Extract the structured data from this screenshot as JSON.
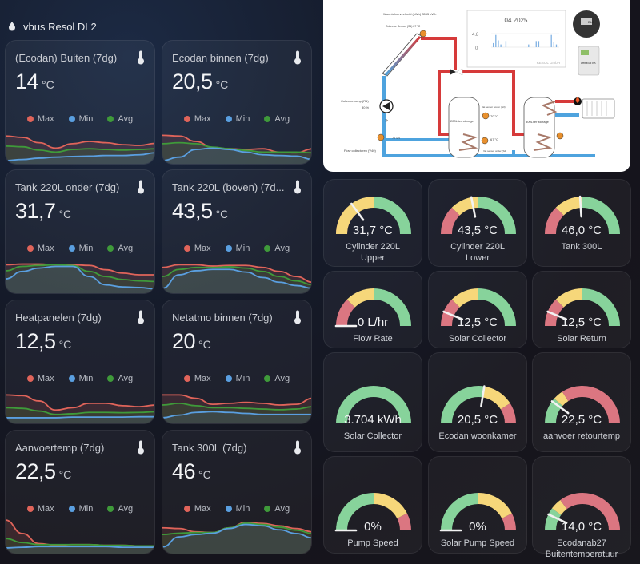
{
  "header": {
    "title": "vbus Resol DL2",
    "icon": "water-drop-icon"
  },
  "colors": {
    "max": "#e0645a",
    "min": "#5a9fe0",
    "avg": "#3f9a3a",
    "gauge_red": "#db7681",
    "gauge_yellow": "#f6d77a",
    "gauge_green": "#87d39b"
  },
  "legend": {
    "max": "Max",
    "min": "Min",
    "avg": "Avg"
  },
  "sensor_cards": [
    {
      "name": "(Ecodan) Buiten (7dg)",
      "value": "14",
      "unit": "°C",
      "icon": "thermometer-icon",
      "series": {
        "max": [
          0.78,
          0.74,
          0.58,
          0.42,
          0.55,
          0.62,
          0.58,
          0.52,
          0.5,
          0.56
        ],
        "avg": [
          0.48,
          0.46,
          0.36,
          0.3,
          0.38,
          0.4,
          0.38,
          0.36,
          0.38,
          0.4
        ],
        "min": [
          0.05,
          0.08,
          0.12,
          0.15,
          0.17,
          0.18,
          0.2,
          0.2,
          0.22,
          0.28
        ]
      }
    },
    {
      "name": "Ecodan binnen (7dg)",
      "value": "20,5",
      "unit": "°C",
      "icon": "thermometer-icon",
      "series": {
        "max": [
          0.8,
          0.78,
          0.62,
          0.44,
          0.4,
          0.38,
          0.4,
          0.3,
          0.28,
          0.4
        ],
        "avg": [
          0.55,
          0.58,
          0.55,
          0.45,
          0.4,
          0.35,
          0.3,
          0.3,
          0.3,
          0.28
        ],
        "min": [
          0.05,
          0.15,
          0.38,
          0.42,
          0.38,
          0.3,
          0.22,
          0.2,
          0.18,
          0.08
        ]
      }
    },
    {
      "name": "Tank 220L onder (7dg)",
      "value": "31,7",
      "unit": "°C",
      "icon": "thermometer-icon",
      "series": {
        "max": [
          0.8,
          0.82,
          0.82,
          0.8,
          0.8,
          0.78,
          0.65,
          0.55,
          0.5,
          0.5
        ],
        "avg": [
          0.62,
          0.75,
          0.78,
          0.8,
          0.78,
          0.6,
          0.45,
          0.36,
          0.32,
          0.3
        ],
        "min": [
          0.38,
          0.6,
          0.7,
          0.75,
          0.75,
          0.45,
          0.2,
          0.14,
          0.12,
          0.08
        ]
      }
    },
    {
      "name": "Tank 220L (boven) (7d...",
      "value": "43,5",
      "unit": "°C",
      "icon": "thermometer-icon",
      "series": {
        "max": [
          0.72,
          0.8,
          0.8,
          0.76,
          0.78,
          0.78,
          0.72,
          0.6,
          0.45,
          0.28
        ],
        "avg": [
          0.45,
          0.66,
          0.72,
          0.72,
          0.74,
          0.7,
          0.6,
          0.45,
          0.32,
          0.2
        ],
        "min": [
          0.1,
          0.5,
          0.62,
          0.66,
          0.66,
          0.58,
          0.42,
          0.28,
          0.18,
          0.1
        ]
      }
    },
    {
      "name": "Heatpanelen (7dg)",
      "value": "12,5",
      "unit": "°C",
      "icon": "thermometer-icon",
      "series": {
        "max": [
          0.8,
          0.78,
          0.62,
          0.35,
          0.42,
          0.55,
          0.55,
          0.48,
          0.45,
          0.5
        ],
        "avg": [
          0.42,
          0.4,
          0.32,
          0.22,
          0.24,
          0.28,
          0.28,
          0.27,
          0.28,
          0.3
        ],
        "min": [
          0.12,
          0.12,
          0.12,
          0.12,
          0.14,
          0.14,
          0.14,
          0.14,
          0.15,
          0.15
        ]
      }
    },
    {
      "name": "Netatmo binnen (7dg)",
      "value": "20",
      "unit": "°C",
      "icon": "thermometer-icon",
      "series": {
        "max": [
          0.8,
          0.8,
          0.7,
          0.52,
          0.55,
          0.58,
          0.55,
          0.5,
          0.52,
          0.7
        ],
        "avg": [
          0.5,
          0.55,
          0.48,
          0.42,
          0.42,
          0.4,
          0.38,
          0.36,
          0.38,
          0.45
        ],
        "min": [
          0.12,
          0.2,
          0.28,
          0.3,
          0.28,
          0.25,
          0.22,
          0.22,
          0.22,
          0.22
        ]
      }
    },
    {
      "name": "Aanvoertemp (7dg)",
      "value": "22,5",
      "unit": "°C",
      "icon": "thermometer-icon",
      "series": {
        "max": [
          0.95,
          0.55,
          0.25,
          0.2,
          0.22,
          0.22,
          0.2,
          0.2,
          0.18,
          0.18
        ],
        "avg": [
          0.4,
          0.28,
          0.22,
          0.22,
          0.22,
          0.22,
          0.2,
          0.2,
          0.18,
          0.18
        ],
        "min": [
          0.12,
          0.14,
          0.16,
          0.16,
          0.16,
          0.16,
          0.16,
          0.14,
          0.14,
          0.14
        ]
      }
    },
    {
      "name": "Tank 300L (7dg)",
      "value": "46",
      "unit": "°C",
      "icon": "thermometer-icon",
      "series": {
        "max": [
          0.72,
          0.7,
          0.6,
          0.58,
          0.72,
          0.88,
          0.85,
          0.78,
          0.7,
          0.6
        ],
        "avg": [
          0.52,
          0.56,
          0.58,
          0.58,
          0.72,
          0.86,
          0.82,
          0.74,
          0.65,
          0.55
        ],
        "min": [
          0.15,
          0.45,
          0.52,
          0.56,
          0.7,
          0.82,
          0.78,
          0.66,
          0.55,
          0.42
        ]
      }
    }
  ],
  "diagram": {
    "heat_quantity": "Warmtehoeveelheid (kWh) 3565 kWh",
    "collector_sensor": "Collector Sensor (S1) 87 °C",
    "collector_pump": "Collectorpomp (R1)",
    "collector_pump_pct": "30 %",
    "flow_rate": "77 l/h",
    "flow_label": "Flow collectoren (V40)",
    "storage_220": "220Liter storage",
    "storage_300": "300Liter storage",
    "sensor_top": "Vat sensor boven (S3)",
    "sensor_top_val": "70 °C",
    "sensor_bottom": "Vat sensor onder (S2)",
    "sensor_bottom_val": "67 °C",
    "chart_month": "04.2025",
    "chart_ymax": "4.8",
    "chart_ymin": "0",
    "chart_brand": "RESOL GmbH",
    "chart_bars": [
      0.3,
      0.9,
      0.5,
      0.2,
      0,
      0.45,
      0,
      0,
      0,
      0,
      0,
      0,
      0,
      0,
      0.2,
      0,
      0,
      0.45,
      0.45,
      0,
      0,
      0,
      0,
      0.9,
      0.4,
      0.2
    ],
    "device_dl2": "DL2",
    "device_deltasol": "DeltaSol BX"
  },
  "gauges": [
    {
      "value": "31,7 °C",
      "label": "Cylinder 220L",
      "label2": "Upper",
      "needle": 0.3,
      "segments": [
        [
          "red",
          0,
          0.25
        ],
        [
          "yellow",
          0,
          0.5
        ],
        [
          "green",
          0.5,
          1
        ]
      ]
    },
    {
      "value": "43,5 °C",
      "label": "Cylinder 220L",
      "label2": "Lower",
      "needle": 0.44,
      "segments": [
        [
          "red",
          0,
          0.25
        ],
        [
          "yellow",
          0.25,
          0.5
        ],
        [
          "green",
          0.5,
          1
        ]
      ]
    },
    {
      "value": "46,0 °C",
      "label": "Tank 300L",
      "label2": "",
      "needle": 0.48,
      "segments": [
        [
          "red",
          0,
          0.25
        ],
        [
          "yellow",
          0.25,
          0.5
        ],
        [
          "green",
          0.5,
          1
        ]
      ]
    },
    {
      "value": "0 L/hr",
      "label": "Flow Rate",
      "label2": "",
      "needle": 0.0,
      "segments": [
        [
          "red",
          0,
          0.25
        ],
        [
          "yellow",
          0.25,
          0.5
        ],
        [
          "green",
          0.5,
          1
        ]
      ]
    },
    {
      "value": "12,5 °C",
      "label": "Solar Collector",
      "label2": "",
      "needle": 0.125,
      "segments": [
        [
          "red",
          0,
          0.25
        ],
        [
          "yellow",
          0.25,
          0.5
        ],
        [
          "green",
          0.5,
          1
        ]
      ]
    },
    {
      "value": "12,5 °C",
      "label": "Solar Return",
      "label2": "",
      "needle": 0.125,
      "segments": [
        [
          "red",
          0,
          0.25
        ],
        [
          "yellow",
          0.25,
          0.5
        ],
        [
          "green",
          0.5,
          1
        ]
      ]
    },
    {
      "value": "3.704 kWh",
      "label": "Solar Collector",
      "label2": "",
      "needle": null,
      "segments": [
        [
          "green",
          0,
          1
        ]
      ]
    },
    {
      "value": "20,5 °C",
      "label": "Ecodan woonkamer",
      "label2": "",
      "needle": 0.55,
      "segments": [
        [
          "green",
          0,
          0.55
        ],
        [
          "yellow",
          0.55,
          0.82
        ],
        [
          "red",
          0.82,
          1
        ]
      ]
    },
    {
      "value": "22,5 °C",
      "label": "aanvoer retourtemp",
      "label2": "",
      "needle": 0.2,
      "segments": [
        [
          "green",
          0,
          0.23
        ],
        [
          "yellow",
          0.23,
          0.32
        ],
        [
          "red",
          0.32,
          1
        ]
      ]
    },
    {
      "value": "0%",
      "label": "Pump Speed",
      "label2": "",
      "needle": 0.0,
      "segments": [
        [
          "green",
          0,
          0.5
        ],
        [
          "yellow",
          0.5,
          0.85
        ],
        [
          "red",
          0.85,
          1
        ]
      ]
    },
    {
      "value": "0%",
      "label": "Solar Pump Speed",
      "label2": "",
      "needle": 0.0,
      "segments": [
        [
          "green",
          0,
          0.5
        ],
        [
          "yellow",
          0.5,
          0.85
        ],
        [
          "red",
          0.85,
          1
        ]
      ]
    },
    {
      "value": "14,0 °C",
      "label": "Ecodanab27",
      "label2": "Buitentemperatuur",
      "needle": 0.14,
      "segments": [
        [
          "green",
          0,
          0.2
        ],
        [
          "yellow",
          0.2,
          0.3
        ],
        [
          "red",
          0.3,
          1
        ]
      ]
    }
  ]
}
